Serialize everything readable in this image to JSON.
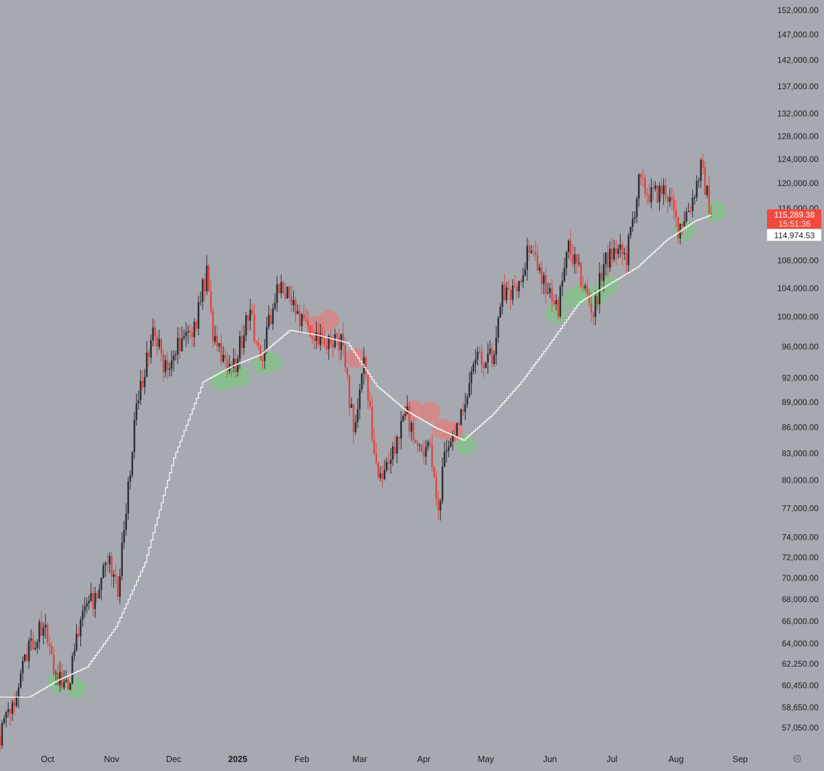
{
  "chart_data": {
    "type": "candlestick",
    "title": "",
    "y_scale": "log",
    "ylim": [
      56000,
      152000
    ],
    "xlim": [
      "2024-09-08",
      "2025-09-10"
    ],
    "y_ticks": [
      {
        "value": 152000,
        "label": "152,000.00"
      },
      {
        "value": 147000,
        "label": "147,000.00"
      },
      {
        "value": 142000,
        "label": "142,000.00"
      },
      {
        "value": 137000,
        "label": "137,000.00"
      },
      {
        "value": 132000,
        "label": "132,000.00"
      },
      {
        "value": 128000,
        "label": "128,000.00"
      },
      {
        "value": 124000,
        "label": "124,000.00"
      },
      {
        "value": 120000,
        "label": "120,000.00"
      },
      {
        "value": 116000,
        "label": "116,000.00"
      },
      {
        "value": 108000,
        "label": "108,000.00"
      },
      {
        "value": 104000,
        "label": "104,000.00"
      },
      {
        "value": 100000,
        "label": "100,000.00"
      },
      {
        "value": 96000,
        "label": "96,000.00"
      },
      {
        "value": 92000,
        "label": "92,000.00"
      },
      {
        "value": 89000,
        "label": "89,000.00"
      },
      {
        "value": 86000,
        "label": "86,000.00"
      },
      {
        "value": 83000,
        "label": "83,000.00"
      },
      {
        "value": 80000,
        "label": "80,000.00"
      },
      {
        "value": 77000,
        "label": "77,000.00"
      },
      {
        "value": 74000,
        "label": "74,000.00"
      },
      {
        "value": 72000,
        "label": "72,000.00"
      },
      {
        "value": 70000,
        "label": "70,000.00"
      },
      {
        "value": 68000,
        "label": "68,000.00"
      },
      {
        "value": 66000,
        "label": "66,000.00"
      },
      {
        "value": 64000,
        "label": "64,000.00"
      },
      {
        "value": 62250,
        "label": "62,250.00"
      },
      {
        "value": 60450,
        "label": "60,450.00"
      },
      {
        "value": 58650,
        "label": "58,650.00"
      },
      {
        "value": 57050,
        "label": "57,050.00"
      }
    ],
    "x_ticks": [
      {
        "date": "2024-10-01",
        "label": "Oct",
        "bold": false
      },
      {
        "date": "2024-11-01",
        "label": "Nov",
        "bold": false
      },
      {
        "date": "2024-12-01",
        "label": "Dec",
        "bold": false
      },
      {
        "date": "2025-01-01",
        "label": "2025",
        "bold": true
      },
      {
        "date": "2025-02-01",
        "label": "Feb",
        "bold": false
      },
      {
        "date": "2025-03-01",
        "label": "Mar",
        "bold": false
      },
      {
        "date": "2025-04-01",
        "label": "Apr",
        "bold": false
      },
      {
        "date": "2025-05-01",
        "label": "May",
        "bold": false
      },
      {
        "date": "2025-06-01",
        "label": "Jun",
        "bold": false
      },
      {
        "date": "2025-07-01",
        "label": "Jul",
        "bold": false
      },
      {
        "date": "2025-08-01",
        "label": "Aug",
        "bold": false
      },
      {
        "date": "2025-09-01",
        "label": "Sep",
        "bold": false
      }
    ],
    "price_path": [
      [
        "2024-09-08",
        56500
      ],
      [
        "2024-09-15",
        59500
      ],
      [
        "2024-09-22",
        63500
      ],
      [
        "2024-09-29",
        65800
      ],
      [
        "2024-10-06",
        61000
      ],
      [
        "2024-10-11",
        60300
      ],
      [
        "2024-10-18",
        67000
      ],
      [
        "2024-10-25",
        68000
      ],
      [
        "2024-10-29",
        72500
      ],
      [
        "2024-11-04",
        68500
      ],
      [
        "2024-11-08",
        76500
      ],
      [
        "2024-11-13",
        88500
      ],
      [
        "2024-11-22",
        98500
      ],
      [
        "2024-11-26",
        93000
      ],
      [
        "2024-12-05",
        97000
      ],
      [
        "2024-12-10",
        97000
      ],
      [
        "2024-12-17",
        106500
      ],
      [
        "2024-12-20",
        97500
      ],
      [
        "2024-12-26",
        93500
      ],
      [
        "2024-12-31",
        93500
      ],
      [
        "2025-01-06",
        101000
      ],
      [
        "2025-01-13",
        94500
      ],
      [
        "2025-01-20",
        105000
      ],
      [
        "2025-01-27",
        102000
      ],
      [
        "2025-02-03",
        98000
      ],
      [
        "2025-02-10",
        96500
      ],
      [
        "2025-02-20",
        97000
      ],
      [
        "2025-02-26",
        86000
      ],
      [
        "2025-03-03",
        94000
      ],
      [
        "2025-03-10",
        80000
      ],
      [
        "2025-03-20",
        85000
      ],
      [
        "2025-03-24",
        87500
      ],
      [
        "2025-03-31",
        82500
      ],
      [
        "2025-04-04",
        83500
      ],
      [
        "2025-04-08",
        76500
      ],
      [
        "2025-04-12",
        84500
      ],
      [
        "2025-04-21",
        87500
      ],
      [
        "2025-04-25",
        94000
      ],
      [
        "2025-05-05",
        94500
      ],
      [
        "2025-05-09",
        103000
      ],
      [
        "2025-05-16",
        103500
      ],
      [
        "2025-05-22",
        110500
      ],
      [
        "2025-05-30",
        104000
      ],
      [
        "2025-06-05",
        101500
      ],
      [
        "2025-06-10",
        110000
      ],
      [
        "2025-06-17",
        104500
      ],
      [
        "2025-06-22",
        100500
      ],
      [
        "2025-06-27",
        107500
      ],
      [
        "2025-07-03",
        109500
      ],
      [
        "2025-07-08",
        108500
      ],
      [
        "2025-07-14",
        120000
      ],
      [
        "2025-07-20",
        118000
      ],
      [
        "2025-07-27",
        119000
      ],
      [
        "2025-08-02",
        113000
      ],
      [
        "2025-08-08",
        116500
      ],
      [
        "2025-08-13",
        122500
      ],
      [
        "2025-08-18",
        115289
      ]
    ],
    "moving_average": [
      [
        "2024-09-08",
        59500
      ],
      [
        "2024-09-22",
        59500
      ],
      [
        "2024-10-06",
        60900
      ],
      [
        "2024-10-20",
        62000
      ],
      [
        "2024-11-03",
        65500
      ],
      [
        "2024-11-17",
        71500
      ],
      [
        "2024-12-01",
        82500
      ],
      [
        "2024-12-15",
        91500
      ],
      [
        "2024-12-29",
        93500
      ],
      [
        "2025-01-12",
        95000
      ],
      [
        "2025-01-26",
        98200
      ],
      [
        "2025-02-09",
        97500
      ],
      [
        "2025-02-23",
        96500
      ],
      [
        "2025-03-09",
        91000
      ],
      [
        "2025-03-23",
        88000
      ],
      [
        "2025-04-06",
        86000
      ],
      [
        "2025-04-20",
        84500
      ],
      [
        "2025-05-04",
        87500
      ],
      [
        "2025-05-18",
        91500
      ],
      [
        "2025-06-01",
        96500
      ],
      [
        "2025-06-15",
        102000
      ],
      [
        "2025-06-29",
        104500
      ],
      [
        "2025-07-13",
        107000
      ],
      [
        "2025-07-27",
        111000
      ],
      [
        "2025-08-10",
        114000
      ],
      [
        "2025-08-18",
        114975
      ]
    ],
    "markers": {
      "green": [
        [
          "2024-10-06",
          60700
        ],
        [
          "2024-10-15",
          60200
        ],
        [
          "2024-12-24",
          91700
        ],
        [
          "2024-12-29",
          92000
        ],
        [
          "2025-01-02",
          92200
        ],
        [
          "2025-01-13",
          93800
        ],
        [
          "2025-01-17",
          94000
        ],
        [
          "2025-04-21",
          84000
        ],
        [
          "2025-06-04",
          100500
        ],
        [
          "2025-06-12",
          102500
        ],
        [
          "2025-06-16",
          103200
        ],
        [
          "2025-06-23",
          102800
        ],
        [
          "2025-06-29",
          104400
        ],
        [
          "2025-08-05",
          112500
        ],
        [
          "2025-08-20",
          115500
        ]
      ],
      "red": [
        [
          "2025-02-08",
          98800
        ],
        [
          "2025-02-14",
          99500
        ],
        [
          "2025-02-27",
          94500
        ],
        [
          "2025-03-27",
          88000
        ],
        [
          "2025-04-04",
          87800
        ],
        [
          "2025-04-10",
          85800
        ],
        [
          "2025-04-15",
          85500
        ]
      ]
    },
    "last_price": {
      "value": 115289.38,
      "label": "115,289.38",
      "countdown": "15:51:36"
    },
    "ma_value": {
      "value": 114974.53,
      "label": "114,974.53"
    },
    "colors": {
      "background": "#a7a9b0",
      "up": "#2a2b30",
      "down": "#e0453f",
      "moving_average": "#ffffff",
      "green_marker": "#86c08a",
      "red_marker": "#d98282",
      "price_tag": "#f04a3e"
    }
  },
  "ui": {
    "settings_icon": "gear-icon"
  }
}
